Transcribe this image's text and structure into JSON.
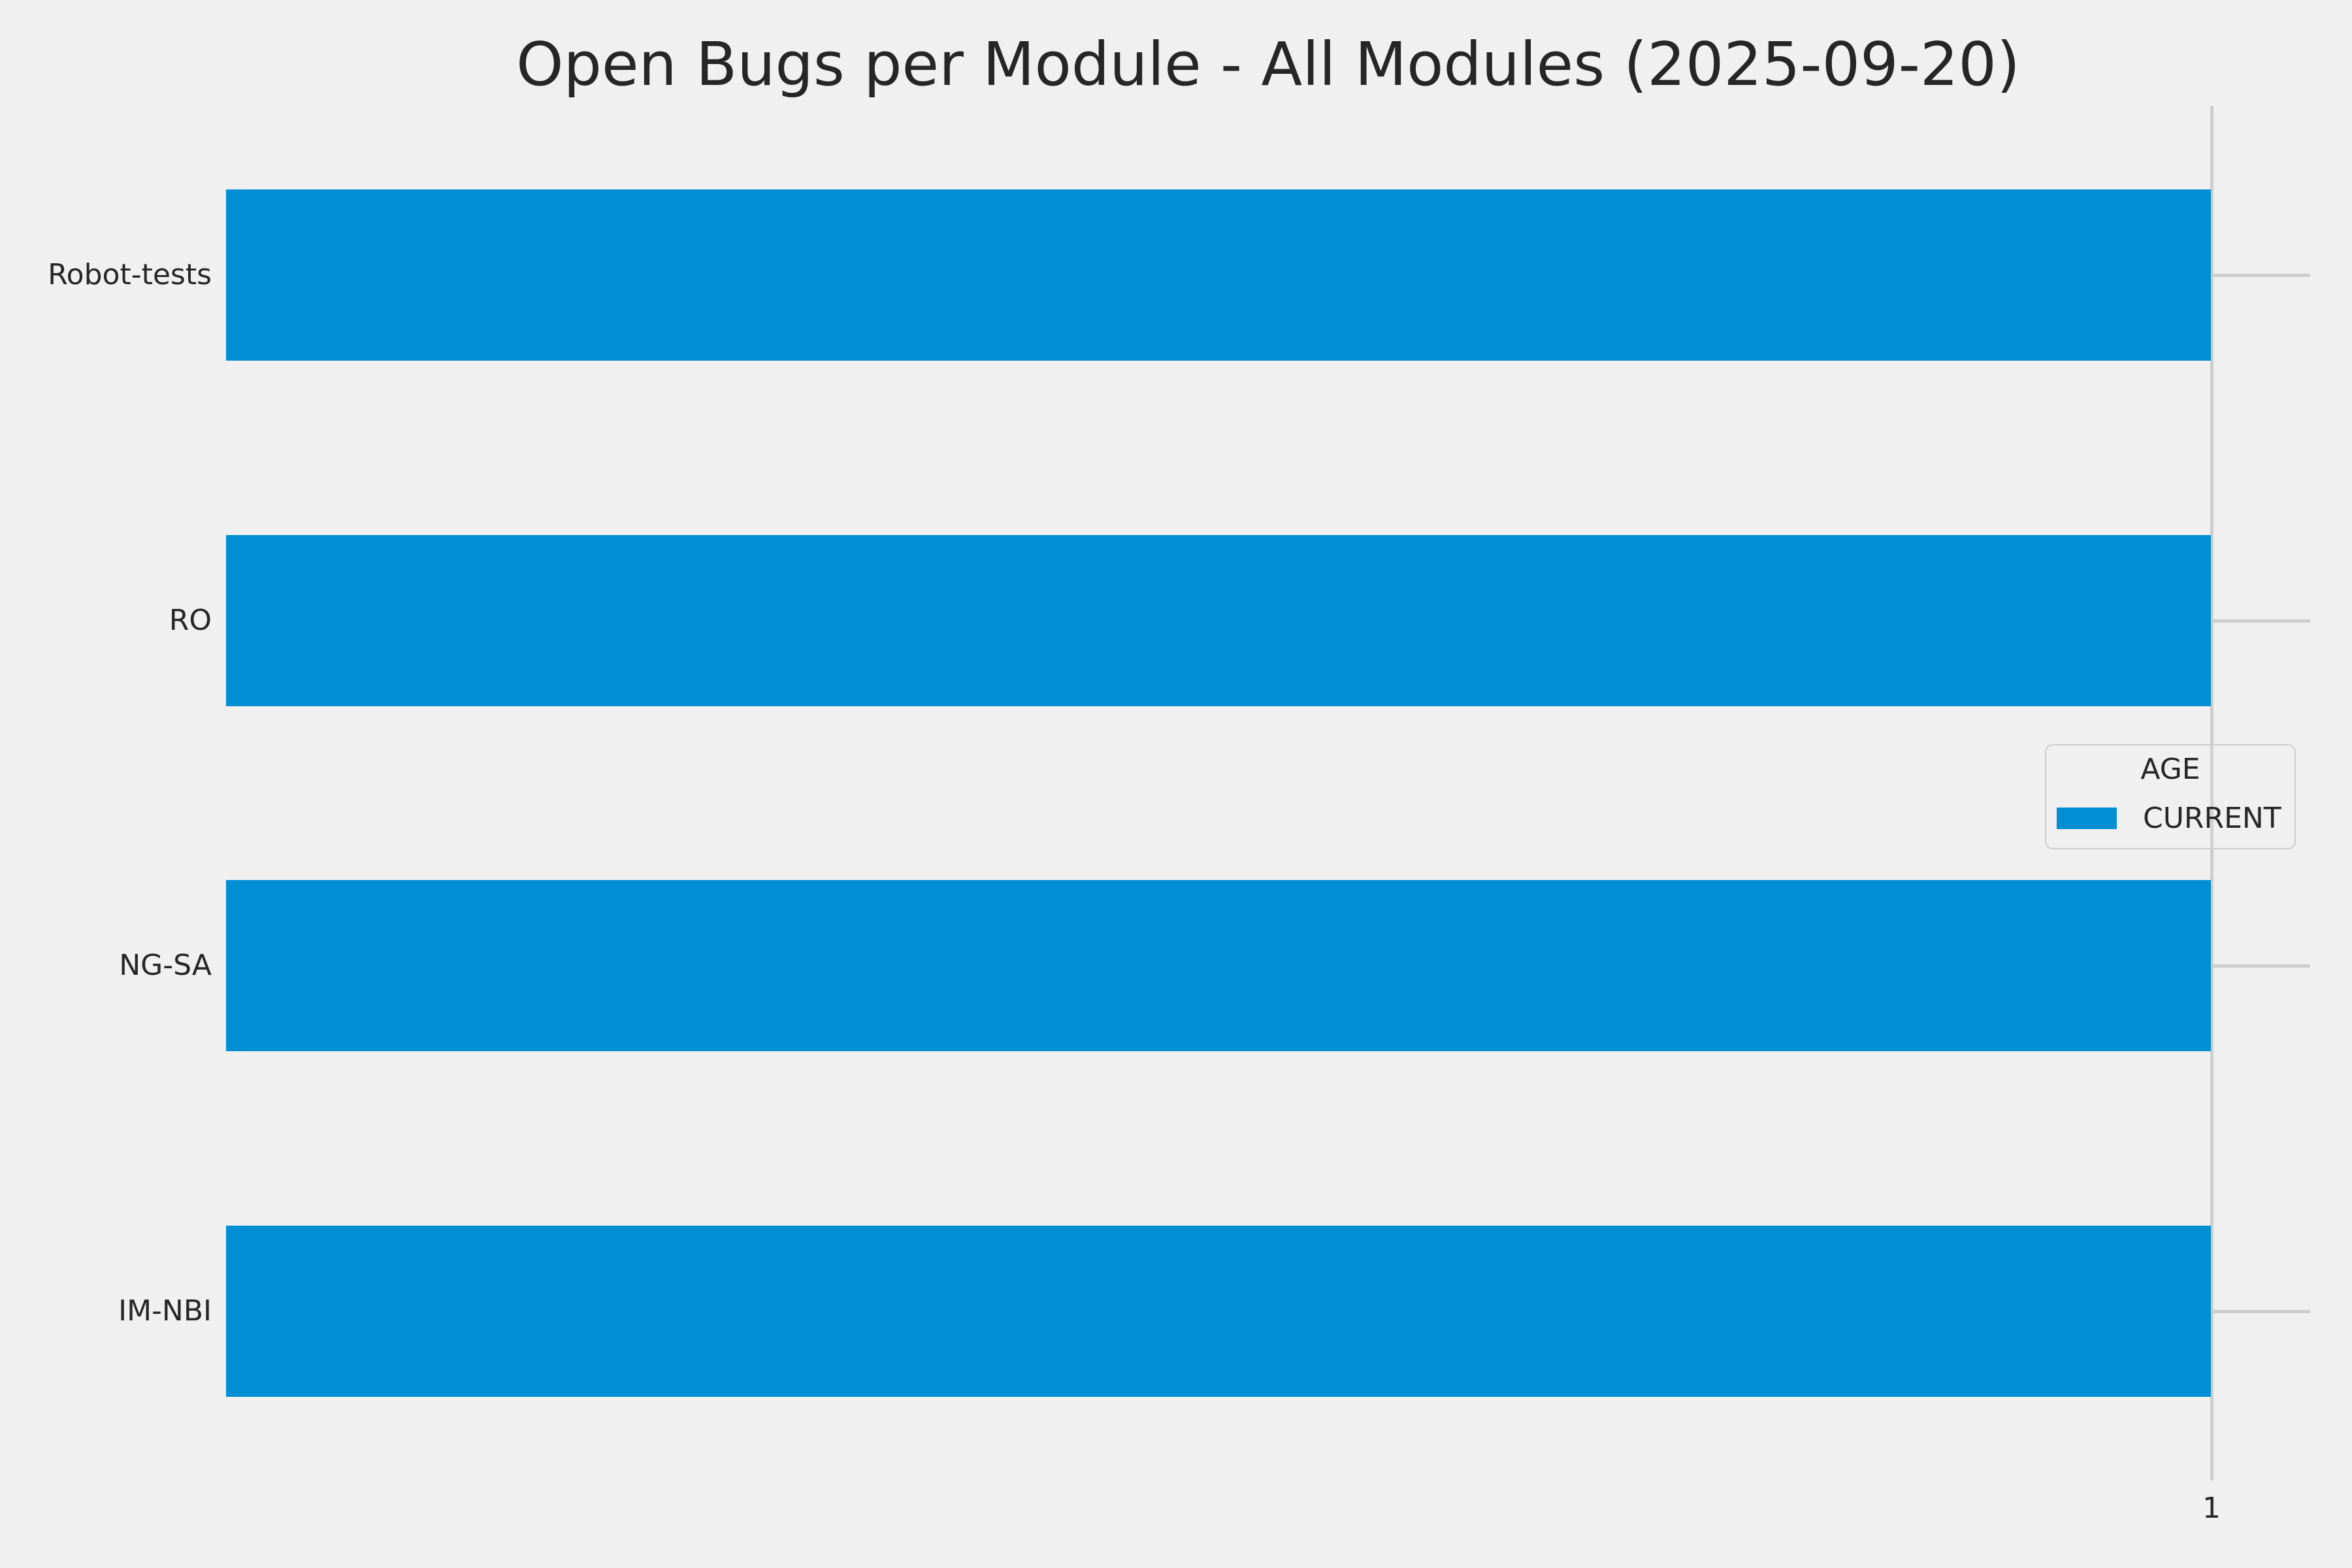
{
  "chart_data": {
    "type": "bar",
    "orientation": "horizontal",
    "title": "Open Bugs per Module - All Modules (2025-09-20)",
    "categories": [
      "Robot-tests",
      "RO",
      "NG-SA",
      "IM-NBI"
    ],
    "series": [
      {
        "name": "CURRENT",
        "values": [
          1,
          1,
          1,
          1
        ]
      }
    ],
    "xlabel": "",
    "ylabel": "",
    "xlim": [
      0,
      1.05
    ],
    "x_ticks": [
      "1"
    ],
    "x_tick_values": [
      1
    ],
    "grid": true,
    "legend": {
      "title": "AGE",
      "position": "center-right",
      "entries": [
        {
          "label": "CURRENT",
          "color": "#008fd5"
        }
      ]
    },
    "colors": {
      "background": "#f0f0f0",
      "bar": "#008fd5",
      "grid": "#cdcdcd",
      "text": "#262626"
    }
  }
}
